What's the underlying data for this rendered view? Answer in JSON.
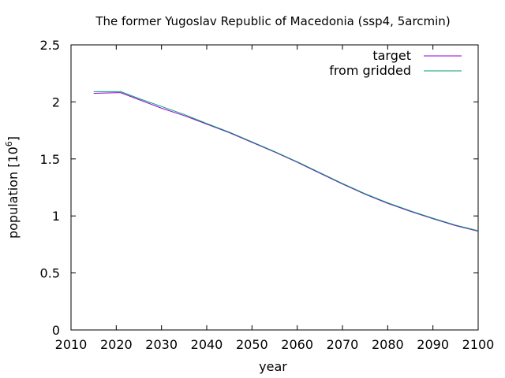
{
  "chart_data": {
    "type": "line",
    "title": "The former Yugoslav Republic of Macedonia (ssp4, 5arcmin)",
    "xlabel": "year",
    "ylabel_base": "population [10",
    "ylabel_exp": "6",
    "ylabel_close": "]",
    "xlim": [
      2010,
      2100
    ],
    "ylim": [
      0,
      2.5
    ],
    "xticks": [
      2010,
      2020,
      2030,
      2040,
      2050,
      2060,
      2070,
      2080,
      2090,
      2100
    ],
    "yticks": [
      0,
      0.5,
      1,
      1.5,
      2,
      2.5
    ],
    "ytick_labels": [
      "0",
      "0.5",
      "1",
      "1.5",
      "2",
      "2.5"
    ],
    "grid": false,
    "legend_position": "top-right",
    "series": [
      {
        "name": "target",
        "color": "#9400d3",
        "x": [
          2015,
          2020,
          2021,
          2025,
          2030,
          2035,
          2040,
          2045,
          2050,
          2055,
          2060,
          2065,
          2070,
          2075,
          2080,
          2085,
          2090,
          2095,
          2100
        ],
        "y": [
          2.075,
          2.08,
          2.08,
          2.02,
          1.945,
          1.88,
          1.805,
          1.73,
          1.645,
          1.56,
          1.47,
          1.375,
          1.28,
          1.19,
          1.11,
          1.04,
          0.975,
          0.915,
          0.865
        ]
      },
      {
        "name": "from gridded",
        "color": "#009e73",
        "x": [
          2015,
          2020,
          2021,
          2025,
          2030,
          2035,
          2040,
          2045,
          2050,
          2055,
          2060,
          2065,
          2070,
          2075,
          2080,
          2085,
          2090,
          2095,
          2100
        ],
        "y": [
          2.09,
          2.09,
          2.09,
          2.03,
          1.96,
          1.89,
          1.81,
          1.735,
          1.65,
          1.565,
          1.475,
          1.38,
          1.285,
          1.195,
          1.115,
          1.045,
          0.98,
          0.92,
          0.87
        ]
      }
    ]
  }
}
